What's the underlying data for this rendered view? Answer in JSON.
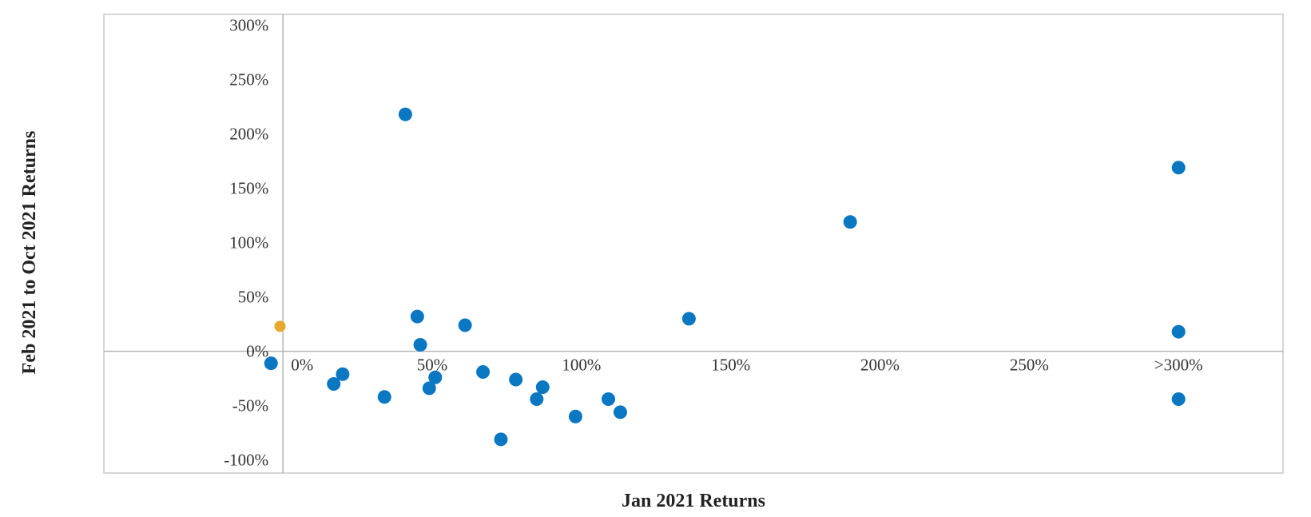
{
  "chart_data": {
    "type": "scatter",
    "xlabel": "Jan 2021 Returns",
    "ylabel": "Feb 2021 to Oct 2021 Returns",
    "xlim": [
      -0.6,
      3.35
    ],
    "ylim": [
      -1.12,
      3.1
    ],
    "x_ticks": [
      {
        "value": 0,
        "label": "0%"
      },
      {
        "value": 0.5,
        "label": "50%"
      },
      {
        "value": 1.0,
        "label": "100%"
      },
      {
        "value": 1.5,
        "label": "150%"
      },
      {
        "value": 2.0,
        "label": "200%"
      },
      {
        "value": 2.5,
        "label": "250%"
      },
      {
        "value": 3.0,
        "label": ">300%"
      }
    ],
    "y_ticks": [
      {
        "value": 3.0,
        "label": "300%"
      },
      {
        "value": 2.5,
        "label": "250%"
      },
      {
        "value": 2.0,
        "label": "200%"
      },
      {
        "value": 1.5,
        "label": "150%"
      },
      {
        "value": 1.0,
        "label": "100%"
      },
      {
        "value": 0.5,
        "label": "50%"
      },
      {
        "value": 0.0,
        "label": "0%"
      },
      {
        "value": -0.5,
        "label": "-50%"
      },
      {
        "value": -1.0,
        "label": "-100%"
      }
    ],
    "grid": false,
    "series": [
      {
        "color": "#0a77c2",
        "points": [
          {
            "x": -0.04,
            "y": -0.11
          },
          {
            "x": 0.17,
            "y": -0.3
          },
          {
            "x": 0.2,
            "y": -0.21
          },
          {
            "x": 0.34,
            "y": -0.42
          },
          {
            "x": 0.41,
            "y": 2.18
          },
          {
            "x": 0.45,
            "y": 0.32
          },
          {
            "x": 0.46,
            "y": 0.06
          },
          {
            "x": 0.49,
            "y": -0.34
          },
          {
            "x": 0.51,
            "y": -0.24
          },
          {
            "x": 0.61,
            "y": 0.24
          },
          {
            "x": 0.67,
            "y": -0.19
          },
          {
            "x": 0.78,
            "y": -0.26
          },
          {
            "x": 0.73,
            "y": -0.81
          },
          {
            "x": 0.85,
            "y": -0.44
          },
          {
            "x": 0.87,
            "y": -0.33
          },
          {
            "x": 0.98,
            "y": -0.6
          },
          {
            "x": 1.09,
            "y": -0.44
          },
          {
            "x": 1.13,
            "y": -0.56
          },
          {
            "x": 1.36,
            "y": 0.3
          },
          {
            "x": 1.9,
            "y": 1.19
          },
          {
            "x": 3.0,
            "y": 1.69
          },
          {
            "x": 3.0,
            "y": 0.18
          },
          {
            "x": 3.0,
            "y": -0.44
          }
        ]
      },
      {
        "color": "#e8a92a",
        "points": [
          {
            "x": -0.01,
            "y": 0.23
          }
        ]
      }
    ]
  }
}
